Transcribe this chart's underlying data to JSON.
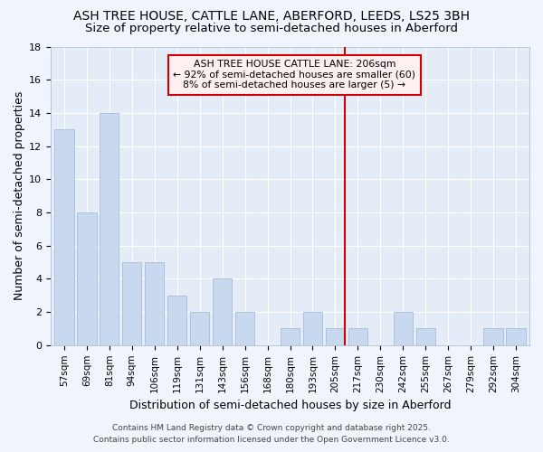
{
  "title_line1": "ASH TREE HOUSE, CATTLE LANE, ABERFORD, LEEDS, LS25 3BH",
  "title_line2": "Size of property relative to semi-detached houses in Aberford",
  "xlabel": "Distribution of semi-detached houses by size in Aberford",
  "ylabel": "Number of semi-detached properties",
  "footer_line1": "Contains HM Land Registry data © Crown copyright and database right 2025.",
  "footer_line2": "Contains public sector information licensed under the Open Government Licence v3.0.",
  "categories": [
    "57sqm",
    "69sqm",
    "81sqm",
    "94sqm",
    "106sqm",
    "119sqm",
    "131sqm",
    "143sqm",
    "156sqm",
    "168sqm",
    "180sqm",
    "193sqm",
    "205sqm",
    "217sqm",
    "230sqm",
    "242sqm",
    "255sqm",
    "267sqm",
    "279sqm",
    "292sqm",
    "304sqm"
  ],
  "values": [
    13,
    8,
    14,
    5,
    5,
    3,
    2,
    4,
    2,
    0,
    1,
    2,
    1,
    1,
    0,
    2,
    1,
    0,
    0,
    1,
    1
  ],
  "bar_color": "#c8d9ef",
  "bar_edge_color": "#aabbd8",
  "vline_index": 12,
  "vline_color": "#cc0000",
  "annotation_title": "ASH TREE HOUSE CATTLE LANE: 206sqm",
  "annotation_line2": "← 92% of semi-detached houses are smaller (60)",
  "annotation_line3": "8% of semi-detached houses are larger (5) →",
  "annotation_box_facecolor": "#fff0f0",
  "annotation_box_edgecolor": "#cc0000",
  "ylim": [
    0,
    18
  ],
  "yticks": [
    0,
    2,
    4,
    6,
    8,
    10,
    12,
    14,
    16,
    18
  ],
  "fig_facecolor": "#f0f4fc",
  "axes_facecolor": "#e4ecf8",
  "grid_color": "#ffffff",
  "title_fontsize": 10,
  "subtitle_fontsize": 9.5,
  "axis_label_fontsize": 9,
  "tick_fontsize": 7.5,
  "footer_fontsize": 6.5,
  "annotation_fontsize": 7.8
}
